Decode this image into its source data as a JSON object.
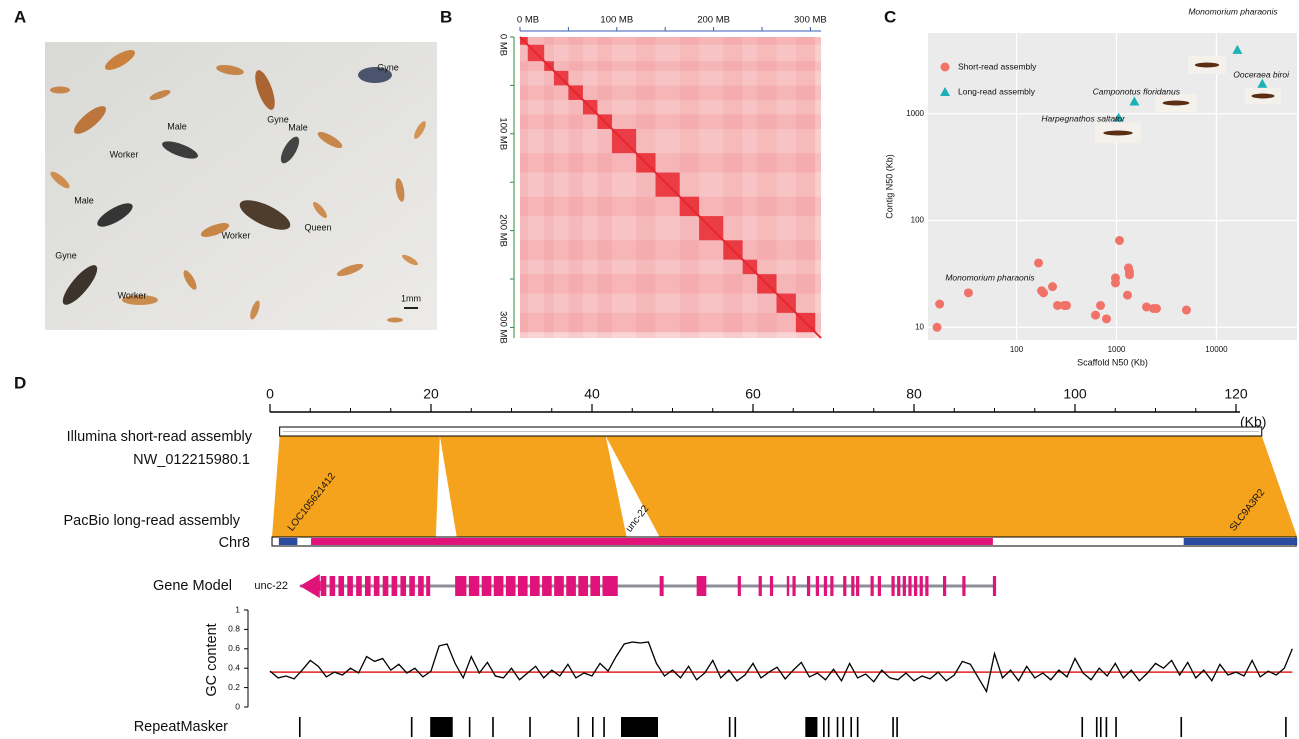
{
  "panel_labels": [
    "A",
    "B",
    "C",
    "D"
  ],
  "photo": {
    "labels": [
      "Gyne",
      "Gyne",
      "Male",
      "Male",
      "Worker",
      "Male",
      "Queen",
      "Worker",
      "Gyne",
      "Worker"
    ],
    "scale_bar": "1mm"
  },
  "chart_data": [
    {
      "type": "heatmap",
      "xlim": [
        0,
        311
      ],
      "ylim": [
        0,
        311
      ],
      "xticks": [
        {
          "value": 0,
          "label": "0 MB"
        },
        {
          "value": 100,
          "label": "100 MB"
        },
        {
          "value": 200,
          "label": "200 MB"
        },
        {
          "value": 300,
          "label": "300 MB"
        }
      ],
      "yticks": [
        {
          "value": 0,
          "label": "0 MB"
        },
        {
          "value": 100,
          "label": "100 MB"
        },
        {
          "value": 200,
          "label": "200 MB"
        },
        {
          "value": 300,
          "label": "300 MB"
        }
      ],
      "xminorticks": [
        50,
        150,
        250
      ],
      "yminorticks": [
        50,
        150,
        250
      ],
      "color": "#e8262e"
    },
    {
      "type": "scatter",
      "log_x": true,
      "log_y": true,
      "grid": true,
      "legend": "top-left",
      "x_label": "Scaffold N50 (Kb)",
      "y_label": "Contig N50 (Kb)",
      "xlim": [
        13,
        64000
      ],
      "ylim": [
        7.6,
        5700
      ],
      "xticks": [
        100,
        1000,
        10000
      ],
      "yticks": [
        10,
        100,
        1000
      ],
      "series": [
        {
          "name": "Short-read assembly",
          "color": "#f07268",
          "marker": "circle",
          "x": [
            16,
            17,
            33,
            166,
            178,
            186,
            229,
            257,
            300,
            316,
            617,
            692,
            794,
            977,
            977,
            1072,
            1318,
            1349,
            1349,
            1288,
            1995,
            2344,
            2512,
            5012
          ],
          "values": [
            10,
            16.5,
            21,
            40,
            22,
            21,
            24,
            16,
            16,
            16,
            13,
            16,
            12,
            26,
            29,
            65,
            36,
            33,
            31,
            20,
            15.5,
            15,
            15,
            14.5
          ]
        },
        {
          "name": "Long-read assembly",
          "color": "#1ab2b8",
          "marker": "triangle",
          "x": [
            1050,
            1510,
            16200,
            28800
          ],
          "values": [
            920,
            1300,
            3960,
            1910
          ]
        }
      ],
      "annotations": [
        "Monomorium pharaonis",
        "Ooceraea biroi",
        "Camponotus floridanus",
        "Harpegnathos saltator",
        "Monomorium pharaonis"
      ]
    },
    {
      "type": "genome",
      "xticks": [
        0,
        20,
        40,
        60,
        80,
        100,
        120
      ],
      "xminorticks": [
        5,
        10,
        15,
        25,
        30,
        35,
        45,
        50,
        55,
        65,
        70,
        75,
        85,
        90,
        95,
        105,
        110,
        115
      ],
      "unit_label": "(Kb)",
      "illumina": {
        "label": "Illumina short-read assembly",
        "id": "NW_012215980.1",
        "span": [
          1.2,
          123.2
        ]
      },
      "pacbio": {
        "label": "PacBio long-read assembly",
        "id": "Chr8",
        "span": [
          0.25,
          127.6
        ]
      },
      "alignment_color": "#f5a21c",
      "alignment_gaps": [
        {
          "top": 21.1,
          "bottom": [
            20.6,
            23.2
          ]
        },
        {
          "top": 41.7,
          "bottom": [
            44.3,
            48.4
          ]
        }
      ],
      "genes": [
        {
          "name": "LOC105621412",
          "span": [
            1.1,
            3.4
          ],
          "color": "#2b4ba0"
        },
        {
          "name": "unc-22",
          "span": [
            5.1,
            89.8
          ],
          "color": "#e0137a"
        },
        {
          "name": "SLC9A3R2",
          "span": [
            113.5,
            127.6
          ],
          "color": "#2b4ba0"
        }
      ],
      "gene_model": {
        "label": "Gene Model",
        "gene": "unc-22",
        "span": [
          3.7,
          90.1
        ],
        "color": "#e0137a",
        "exons": [
          [
            6.3,
            7.0
          ],
          [
            7.4,
            8.1
          ],
          [
            8.5,
            9.2
          ],
          [
            9.6,
            10.3
          ],
          [
            10.7,
            11.4
          ],
          [
            11.8,
            12.5
          ],
          [
            12.9,
            13.6
          ],
          [
            14.0,
            14.7
          ],
          [
            15.1,
            15.8
          ],
          [
            16.2,
            16.9
          ],
          [
            17.3,
            18.0
          ],
          [
            18.4,
            19.1
          ],
          [
            19.4,
            19.9
          ],
          [
            23.0,
            24.4
          ],
          [
            24.7,
            26.0
          ],
          [
            26.3,
            27.5
          ],
          [
            27.8,
            29.0
          ],
          [
            29.3,
            30.5
          ],
          [
            30.8,
            32.0
          ],
          [
            32.3,
            33.5
          ],
          [
            33.8,
            35.0
          ],
          [
            35.3,
            36.5
          ],
          [
            36.8,
            38.0
          ],
          [
            38.3,
            39.5
          ],
          [
            39.8,
            41.0
          ],
          [
            41.3,
            43.2
          ],
          [
            48.4,
            48.9
          ],
          [
            53.0,
            54.2
          ],
          [
            58.1,
            58.5
          ],
          [
            60.7,
            61.1
          ],
          [
            62.1,
            62.5
          ],
          [
            64.2,
            64.5
          ],
          [
            64.9,
            65.3
          ],
          [
            66.7,
            67.1
          ],
          [
            67.8,
            68.2
          ],
          [
            68.8,
            69.2
          ],
          [
            69.6,
            70.0
          ],
          [
            71.2,
            71.6
          ],
          [
            72.2,
            72.6
          ],
          [
            72.8,
            73.2
          ],
          [
            74.6,
            75.0
          ],
          [
            75.5,
            75.9
          ],
          [
            77.2,
            77.6
          ],
          [
            77.9,
            78.3
          ],
          [
            78.6,
            79.0
          ],
          [
            79.3,
            79.7
          ],
          [
            80.0,
            80.4
          ],
          [
            80.7,
            81.1
          ],
          [
            81.4,
            81.8
          ],
          [
            83.6,
            84.0
          ],
          [
            86.0,
            86.4
          ],
          [
            89.8,
            90.2
          ]
        ]
      },
      "gc_content": {
        "label": "GC content",
        "ylim": [
          0,
          1
        ],
        "yticks": [
          0,
          0.2,
          0.4,
          0.6,
          0.8,
          1
        ],
        "reference_line": 0.36,
        "color": "#000000",
        "reference_color": "#e0201c",
        "x": [
          0,
          1,
          2,
          3,
          4,
          5,
          6,
          7,
          8,
          9,
          10,
          11,
          12,
          13,
          14,
          15,
          16,
          17,
          18,
          19,
          20,
          21,
          22,
          23,
          24,
          25,
          26,
          27,
          28,
          29,
          30,
          31,
          32,
          33,
          34,
          35,
          36,
          37,
          38,
          39,
          40,
          41,
          42,
          43,
          44,
          45,
          46,
          47,
          48,
          49,
          50,
          51,
          52,
          53,
          54,
          55,
          56,
          57,
          58,
          59,
          60,
          61,
          62,
          63,
          64,
          65,
          66,
          67,
          68,
          69,
          70,
          71,
          72,
          73,
          74,
          75,
          76,
          77,
          78,
          79,
          80,
          81,
          82,
          83,
          84,
          85,
          86,
          87,
          88,
          89,
          90,
          91,
          92,
          93,
          94,
          95,
          96,
          97,
          98,
          99,
          100,
          101,
          102,
          103,
          104,
          105,
          106,
          107,
          108,
          109,
          110,
          111,
          112,
          113,
          114,
          115,
          116,
          117,
          118,
          119,
          120,
          121,
          122,
          123,
          124,
          125,
          126,
          127
        ],
        "values": [
          0.37,
          0.3,
          0.32,
          0.29,
          0.38,
          0.48,
          0.42,
          0.31,
          0.36,
          0.33,
          0.4,
          0.35,
          0.52,
          0.47,
          0.5,
          0.38,
          0.44,
          0.35,
          0.4,
          0.31,
          0.37,
          0.63,
          0.65,
          0.45,
          0.3,
          0.52,
          0.35,
          0.46,
          0.32,
          0.3,
          0.4,
          0.28,
          0.35,
          0.42,
          0.3,
          0.38,
          0.32,
          0.44,
          0.3,
          0.35,
          0.32,
          0.45,
          0.37,
          0.52,
          0.65,
          0.67,
          0.66,
          0.67,
          0.45,
          0.32,
          0.38,
          0.3,
          0.42,
          0.28,
          0.35,
          0.48,
          0.3,
          0.38,
          0.27,
          0.33,
          0.45,
          0.3,
          0.36,
          0.41,
          0.29,
          0.38,
          0.46,
          0.31,
          0.35,
          0.28,
          0.39,
          0.27,
          0.45,
          0.3,
          0.34,
          0.26,
          0.38,
          0.3,
          0.28,
          0.35,
          0.27,
          0.32,
          0.29,
          0.36,
          0.27,
          0.33,
          0.47,
          0.44,
          0.3,
          0.16,
          0.55,
          0.3,
          0.38,
          0.27,
          0.42,
          0.3,
          0.35,
          0.28,
          0.38,
          0.31,
          0.5,
          0.35,
          0.28,
          0.4,
          0.32,
          0.45,
          0.3,
          0.38,
          0.27,
          0.35,
          0.45,
          0.4,
          0.48,
          0.33,
          0.46,
          0.3,
          0.38,
          0.27,
          0.44,
          0.33,
          0.36,
          0.32,
          0.48,
          0.31,
          0.37,
          0.33,
          0.4,
          0.6
        ]
      },
      "repeats": {
        "label": "RepeatMasker",
        "intervals": [
          [
            3.6,
            3.8
          ],
          [
            17.5,
            17.7
          ],
          [
            19.9,
            22.7
          ],
          [
            24.7,
            24.9
          ],
          [
            27.6,
            27.8
          ],
          [
            32.2,
            32.4
          ],
          [
            38.2,
            38.4
          ],
          [
            40.0,
            40.2
          ],
          [
            41.4,
            41.6
          ],
          [
            43.6,
            48.2
          ],
          [
            57.0,
            57.2
          ],
          [
            57.7,
            57.9
          ],
          [
            66.5,
            68.0
          ],
          [
            68.7,
            68.9
          ],
          [
            69.3,
            69.5
          ],
          [
            70.4,
            70.6
          ],
          [
            71.1,
            71.3
          ],
          [
            72.1,
            72.3
          ],
          [
            72.9,
            73.1
          ],
          [
            77.3,
            77.5
          ],
          [
            77.8,
            78.0
          ],
          [
            100.8,
            101.0
          ],
          [
            102.6,
            102.8
          ],
          [
            103.1,
            103.3
          ],
          [
            103.8,
            104.0
          ],
          [
            105.0,
            105.2
          ],
          [
            113.1,
            113.3
          ],
          [
            126.1,
            126.3
          ]
        ]
      }
    }
  ]
}
